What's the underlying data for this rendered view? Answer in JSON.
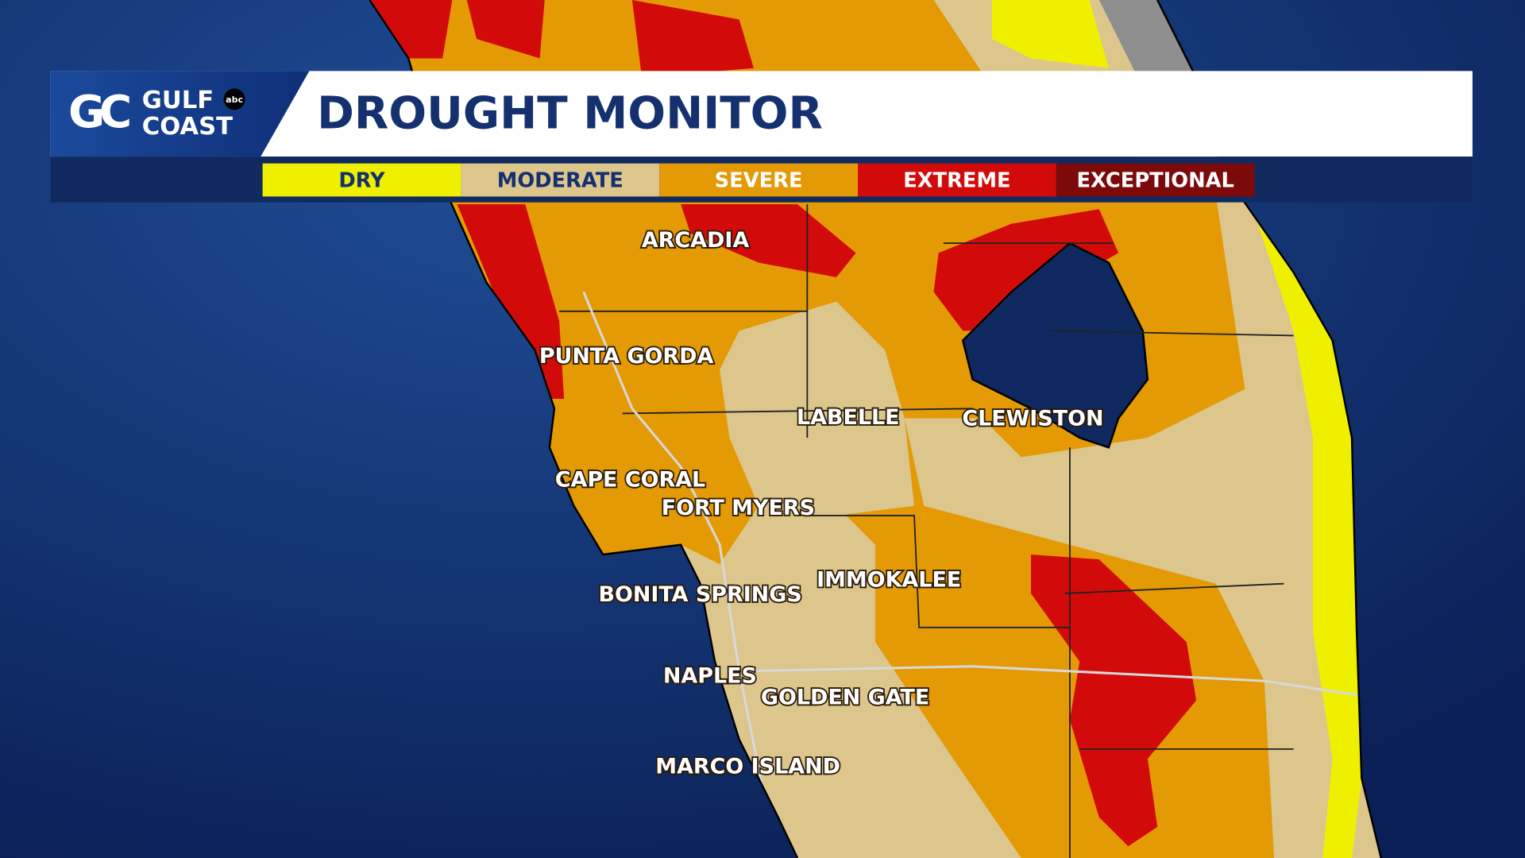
{
  "header": {
    "logo": {
      "monogram": "GC",
      "line1": "GULF",
      "line2": "COAST",
      "network": "abc"
    },
    "title": "DROUGHT MONITOR"
  },
  "legend": [
    {
      "label": "DRY",
      "color": "#eef000"
    },
    {
      "label": "MODERATE",
      "color": "#ddc68c"
    },
    {
      "label": "SEVERE",
      "color": "#e39a05"
    },
    {
      "label": "EXTREME",
      "color": "#d30a0a"
    },
    {
      "label": "EXCEPTIONAL",
      "color": "#7c0a0a"
    }
  ],
  "places": [
    {
      "name": "ARCADIA"
    },
    {
      "name": "PUNTA GORDA"
    },
    {
      "name": "LABELLE"
    },
    {
      "name": "CLEWISTON"
    },
    {
      "name": "CAPE CORAL"
    },
    {
      "name": "FORT MYERS"
    },
    {
      "name": "IMMOKALEE"
    },
    {
      "name": "BONITA SPRINGS"
    },
    {
      "name": "NAPLES"
    },
    {
      "name": "GOLDEN GATE"
    },
    {
      "name": "MARCO ISLAND"
    }
  ]
}
